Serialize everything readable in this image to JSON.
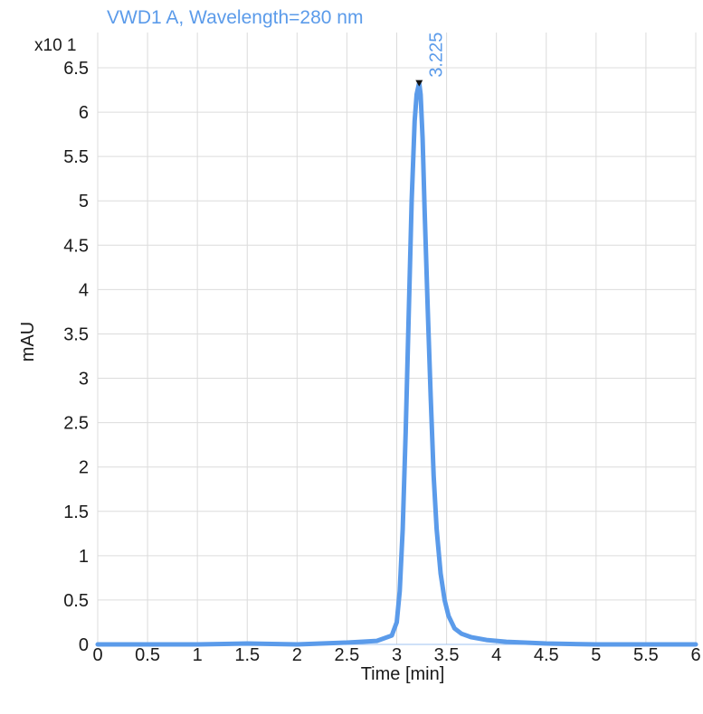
{
  "chart_data": {
    "type": "line",
    "title": "VWD1 A, Wavelength=280 nm",
    "xlabel": "Time [min]",
    "ylabel": "mAU",
    "y_multiplier_label": "x10 1",
    "xlim": [
      0,
      6
    ],
    "ylim": [
      -0.05,
      6.7
    ],
    "x_ticks": [
      0,
      0.5,
      1,
      1.5,
      2,
      2.5,
      3,
      3.5,
      4,
      4.5,
      5,
      5.5,
      6
    ],
    "y_ticks": [
      0,
      0.5,
      1,
      1.5,
      2,
      2.5,
      3,
      3.5,
      4,
      4.5,
      5,
      5.5,
      6,
      6.5
    ],
    "grid": true,
    "series": [
      {
        "color": "#5b9bea",
        "x": [
          0,
          0.5,
          1,
          1.5,
          2,
          2.5,
          2.8,
          2.95,
          3.0,
          3.03,
          3.06,
          3.09,
          3.12,
          3.15,
          3.18,
          3.2,
          3.225,
          3.24,
          3.26,
          3.28,
          3.31,
          3.34,
          3.37,
          3.4,
          3.44,
          3.48,
          3.52,
          3.58,
          3.65,
          3.75,
          3.9,
          4.1,
          4.5,
          5,
          5.5,
          6
        ],
        "y": [
          0.0,
          0.0,
          0.0,
          0.01,
          0.0,
          0.02,
          0.04,
          0.1,
          0.25,
          0.6,
          1.3,
          2.4,
          3.7,
          5.0,
          5.9,
          6.2,
          6.33,
          6.2,
          5.7,
          4.9,
          3.8,
          2.8,
          1.9,
          1.3,
          0.8,
          0.5,
          0.32,
          0.18,
          0.12,
          0.08,
          0.05,
          0.03,
          0.01,
          0.0,
          0.0,
          0.0
        ]
      }
    ],
    "peaks": [
      {
        "x": 3.225,
        "y": 6.33,
        "label": "3.225"
      }
    ]
  }
}
